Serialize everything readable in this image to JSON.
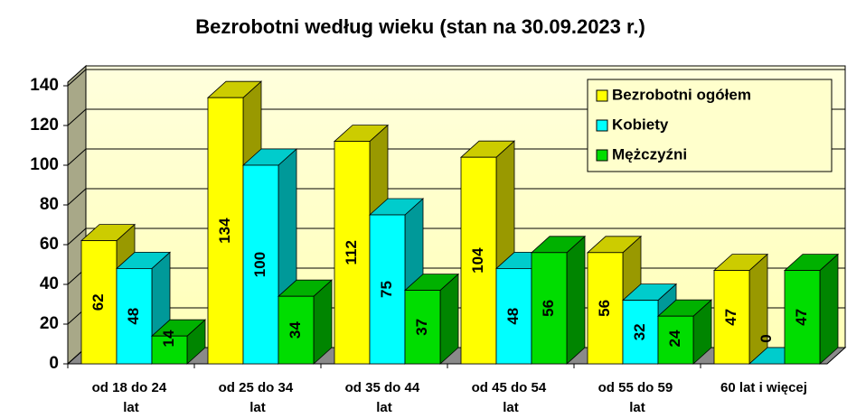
{
  "chart_data": {
    "type": "bar3d",
    "title": "Bezrobotni według wieku (stan na 30.09.2023 r.)",
    "categories": [
      "od 18 do 24 lat",
      "od 25 do 34 lat",
      "od 35 do 44 lat",
      "od 45 do 54 lat",
      "od 55 do 59 lat",
      "60 lat i więcej"
    ],
    "series": [
      {
        "name": "Bezrobotni ogółem",
        "color": "#ffff00",
        "values": [
          62,
          134,
          112,
          104,
          56,
          47
        ]
      },
      {
        "name": "Kobiety",
        "color": "#00ffff",
        "values": [
          48,
          100,
          75,
          48,
          32,
          0
        ]
      },
      {
        "name": "Mężczyźni",
        "color": "#00dd00",
        "values": [
          14,
          34,
          37,
          56,
          24,
          47
        ]
      }
    ],
    "ylim": [
      0,
      140
    ],
    "yticks": [
      0,
      20,
      40,
      60,
      80,
      100,
      120,
      140
    ],
    "grid": true,
    "legend": "top-right"
  }
}
